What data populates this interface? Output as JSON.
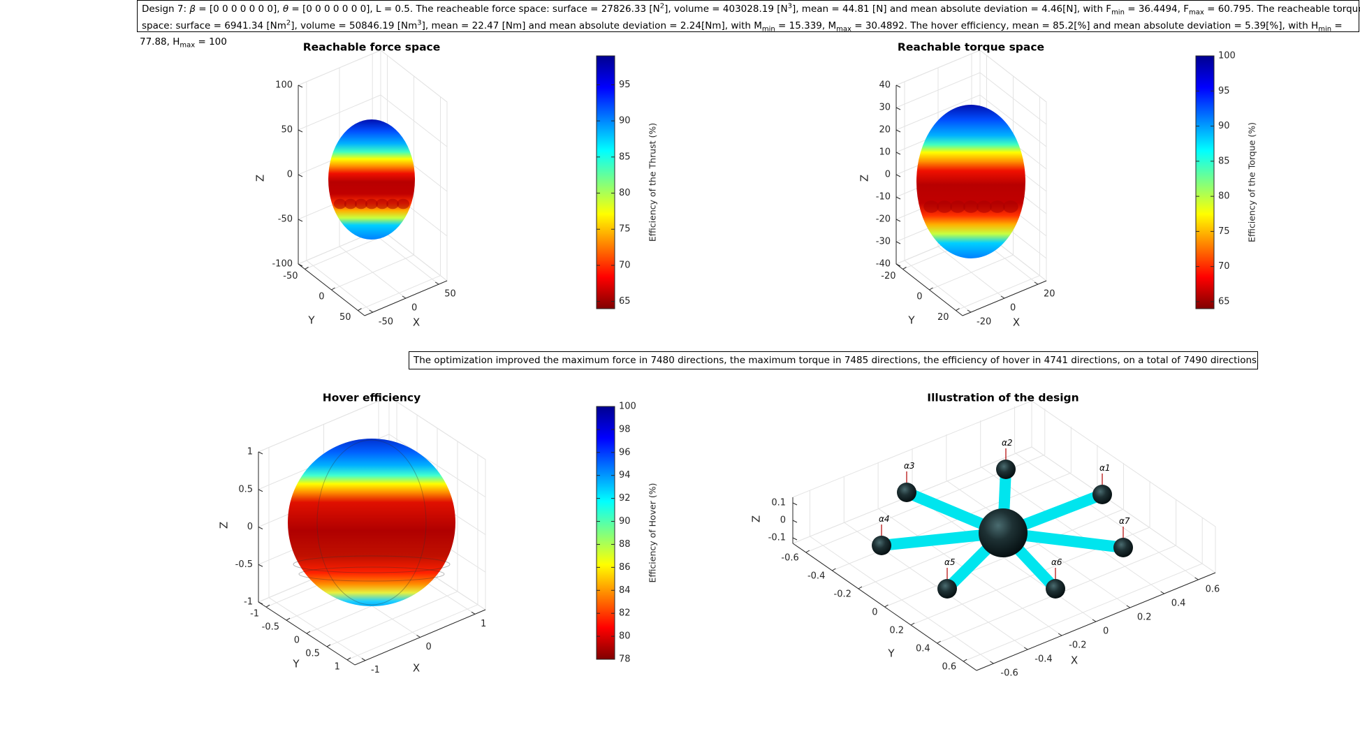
{
  "header": {
    "line1": {
      "p1": "Design 7: ",
      "beta_sym": "β",
      "p2": " = [0 0 0 0 0 0 0], ",
      "theta_sym": "θ",
      "p3": " = [0 0 0 0 0 0 0], L = 0.5. The reacheable force space: surface = 27826.33 [N",
      "sup1": "2",
      "p4": "], volume = 403028.19 [N",
      "sup2": "3",
      "p5": "], mean = 44.81 [N] and mean absolute deviation = 4.46[N], with F",
      "sub1": "min",
      "p6": " = 36.4494, F",
      "sub2": "max",
      "p7": " = 60.795. The reacheable torque"
    },
    "line2": {
      "p1": "space: surface = 6941.34 [Nm",
      "sup1": "2",
      "p2": "], volume = 50846.19 [Nm",
      "sup2": "3",
      "p3": "], mean = 22.47 [Nm] and mean absolute deviation = 2.24[Nm], with M",
      "sub1": "min",
      "p4": " = 15.339, M",
      "sub2": "max",
      "p5": " = 30.4892. The hover efficiency, mean = 85.2[%] and mean absolute deviation = 5.39[%], with H",
      "sub3": "min",
      "p6": " ="
    },
    "line3": {
      "p1": "77.88, H",
      "sub1": "max",
      "p2": " = 100"
    }
  },
  "note": "The optimization improved the maximum force in 7480 directions, the maximum torque in 7485 directions, the efficiency of hover in 4741 directions, on a total of 7490 directions",
  "colors": {
    "jet": [
      "#00008f",
      "#0000ff",
      "#0080ff",
      "#00ffff",
      "#80ff80",
      "#ffff00",
      "#ff8000",
      "#ff0000",
      "#800000"
    ],
    "design_arm": "#00e5ee",
    "design_hub": "#1f3b3f",
    "axis": "#262626",
    "grid": "#e3e3e3"
  },
  "chart_data": [
    {
      "type": "scatter",
      "subtype": "3d-surface",
      "title": "Reachable force space",
      "xlabel": "X",
      "ylabel": "Y",
      "zlabel": "Z",
      "x_ticks": [
        "-50",
        "0",
        "50"
      ],
      "y_ticks": [
        "-50",
        "0",
        "50"
      ],
      "z_ticks": [
        "-100",
        "-50",
        "0",
        "50",
        "100"
      ],
      "zlim": [
        -100,
        100
      ],
      "colorbar": {
        "label": "Efficiency of the Thrust (%)",
        "ticks": [
          "65",
          "70",
          "75",
          "80",
          "85",
          "90",
          "95"
        ],
        "range": [
          64,
          99
        ]
      }
    },
    {
      "type": "scatter",
      "subtype": "3d-surface",
      "title": "Reachable torque space",
      "xlabel": "X",
      "ylabel": "Y",
      "zlabel": "Z",
      "x_ticks": [
        "-20",
        "0",
        "20"
      ],
      "y_ticks": [
        "-20",
        "0",
        "20"
      ],
      "z_ticks": [
        "-40",
        "-30",
        "-20",
        "-10",
        "0",
        "10",
        "20",
        "30",
        "40"
      ],
      "zlim": [
        -40,
        40
      ],
      "colorbar": {
        "label": "Efficiency of the Torque (%)",
        "ticks": [
          "65",
          "70",
          "75",
          "80",
          "85",
          "90",
          "95",
          "100"
        ],
        "range": [
          64,
          100
        ]
      }
    },
    {
      "type": "scatter",
      "subtype": "3d-surface",
      "title": "Hover efficiency",
      "xlabel": "X",
      "ylabel": "Y",
      "zlabel": "Z",
      "x_ticks": [
        "-1",
        "0",
        "1"
      ],
      "y_ticks": [
        "-1",
        "-0.5",
        "0",
        "0.5",
        "1"
      ],
      "z_ticks": [
        "-1",
        "-0.5",
        "0",
        "0.5",
        "1"
      ],
      "zlim": [
        -1,
        1
      ],
      "colorbar": {
        "label": "Efficiency of Hover (%)",
        "ticks": [
          "78",
          "80",
          "82",
          "84",
          "86",
          "88",
          "90",
          "92",
          "94",
          "96",
          "98",
          "100"
        ],
        "range": [
          78,
          100
        ]
      }
    },
    {
      "type": "scatter",
      "subtype": "3d-design",
      "title": "Illustration of the design",
      "xlabel": "X",
      "ylabel": "Y",
      "zlabel": "Z",
      "x_ticks": [
        "-0.6",
        "-0.4",
        "-0.2",
        "0",
        "0.2",
        "0.4",
        "0.6"
      ],
      "y_ticks": [
        "-0.6",
        "-0.4",
        "-0.2",
        "0",
        "0.2",
        "0.4",
        "0.6"
      ],
      "z_ticks": [
        "-0.1",
        "0",
        "0.1"
      ],
      "rotor_labels": [
        "α1",
        "α2",
        "α3",
        "α4",
        "α5",
        "α6",
        "α7"
      ],
      "arm_length": 0.5,
      "num_rotors": 7
    }
  ]
}
